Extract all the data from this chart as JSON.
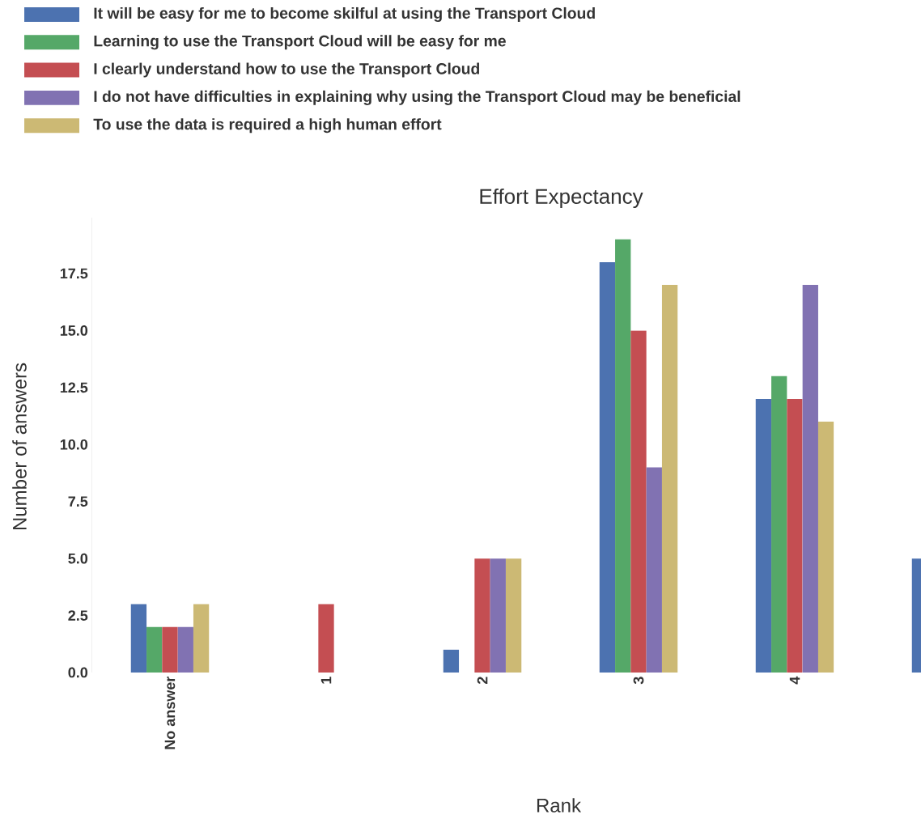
{
  "chart_data": {
    "type": "bar",
    "title": "Effort Expectancy",
    "xlabel": "Rank",
    "ylabel": "Number of answers",
    "categories": [
      "No answer",
      "1",
      "2",
      "3",
      "4",
      null
    ],
    "series": [
      {
        "name": "It will be easy for me to become skilful at using the Transport Cloud",
        "color": "#4c72b0",
        "values": [
          3,
          0,
          1,
          18,
          12,
          5
        ]
      },
      {
        "name": "Learning to use the Transport Cloud will be easy for me",
        "color": "#55a868",
        "values": [
          2,
          0,
          0,
          19,
          13,
          null
        ]
      },
      {
        "name": "I clearly understand how to use the Transport Cloud",
        "color": "#c44e52",
        "values": [
          2,
          3,
          5,
          15,
          12,
          null
        ]
      },
      {
        "name": "I do not have difficulties in explaining why using the Transport Cloud may be beneficial",
        "color": "#8172b2",
        "values": [
          2,
          0,
          5,
          9,
          17,
          null
        ]
      },
      {
        "name": "To use the data is required a high human effort",
        "color": "#ccb974",
        "values": [
          3,
          0,
          5,
          17,
          11,
          null
        ]
      }
    ],
    "ylim": [
      0,
      19.95
    ],
    "yticks": [
      {
        "value": 0,
        "label": "0.0"
      },
      {
        "value": 2.5,
        "label": "2.5"
      },
      {
        "value": 5,
        "label": "5.0"
      },
      {
        "value": 7.5,
        "label": "7.5"
      },
      {
        "value": 10,
        "label": "10.0"
      },
      {
        "value": 12.5,
        "label": "12.5"
      },
      {
        "value": 15,
        "label": "15.0"
      },
      {
        "value": 17.5,
        "label": "17.5"
      }
    ],
    "legend": "top"
  }
}
